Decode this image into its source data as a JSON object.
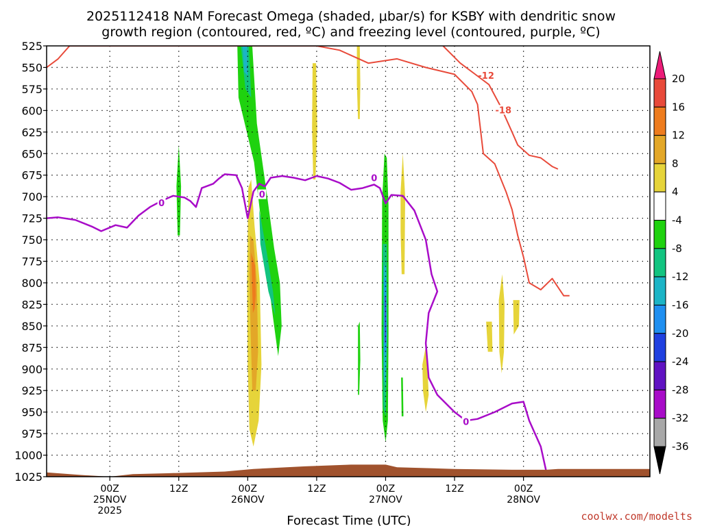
{
  "title": {
    "line1": "2025112418 NAM Forecast Omega (shaded, μbar/s) for KSBY with dendritic snow",
    "line2": "growth region (contoured, red, ºC) and freezing level (contoured, purple, ºC)"
  },
  "credit": "coolwx.com/modelts",
  "chart_data": {
    "type": "heatmap",
    "xlabel": "Forecast Time (UTC)",
    "ylabel": "",
    "y_axis": {
      "inverted": true,
      "ylim": [
        1025,
        525
      ],
      "ticks": [
        525,
        550,
        575,
        600,
        625,
        650,
        675,
        700,
        725,
        750,
        775,
        800,
        825,
        850,
        875,
        900,
        925,
        950,
        975,
        1000,
        1025
      ]
    },
    "x_axis": {
      "range_hours": [
        -11,
        94
      ],
      "ticks": [
        {
          "hour": 0,
          "lines": [
            "00Z",
            "25NOV",
            "2025"
          ]
        },
        {
          "hour": 12,
          "lines": [
            "12Z"
          ]
        },
        {
          "hour": 24,
          "lines": [
            "00Z",
            "26NOV"
          ]
        },
        {
          "hour": 36,
          "lines": [
            "12Z"
          ]
        },
        {
          "hour": 48,
          "lines": [
            "00Z",
            "27NOV"
          ]
        },
        {
          "hour": 60,
          "lines": [
            "12Z"
          ]
        },
        {
          "hour": 72,
          "lines": [
            "00Z",
            "28NOV"
          ]
        }
      ]
    },
    "grid": true,
    "colorbar": {
      "orientation": "vertical",
      "levels": [
        20,
        16,
        12,
        8,
        4,
        -4,
        -8,
        -12,
        -16,
        -20,
        -24,
        -28,
        -32,
        -36
      ],
      "colors": [
        "#ec1c78",
        "#e84a3a",
        "#ee7c1e",
        "#e3a728",
        "#e6d43a",
        "#ffffff",
        "#1fd20f",
        "#12c480",
        "#1cb4c6",
        "#1f8ff0",
        "#1f40e0",
        "#6012c2",
        "#a80cc8",
        "#a8a8a8",
        "#000000"
      ]
    },
    "omega_regions": [
      {
        "color": "#1fd20f",
        "points": [
          [
            11.6,
            688
          ],
          [
            12.0,
            640
          ],
          [
            12.4,
            688
          ],
          [
            12.2,
            745
          ],
          [
            11.8,
            745
          ]
        ]
      },
      {
        "color": "#1fd20f",
        "points": [
          [
            22.2,
            525
          ],
          [
            24.8,
            525
          ],
          [
            25.6,
            615
          ],
          [
            27.4,
            700
          ],
          [
            28.6,
            760
          ],
          [
            29.6,
            800
          ],
          [
            29.9,
            850
          ],
          [
            29.3,
            885
          ],
          [
            28.4,
            840
          ],
          [
            26.9,
            760
          ],
          [
            25.1,
            660
          ],
          [
            22.4,
            585
          ]
        ]
      },
      {
        "color": "#12c480",
        "points": [
          [
            22.8,
            525
          ],
          [
            24.2,
            525
          ],
          [
            24.6,
            585
          ],
          [
            23.6,
            575
          ]
        ]
      },
      {
        "color": "#1cb4c6",
        "points": [
          [
            23.1,
            525
          ],
          [
            23.9,
            525
          ],
          [
            24.0,
            560
          ],
          [
            23.4,
            555
          ]
        ]
      },
      {
        "color": "#12c480",
        "points": [
          [
            26.0,
            715
          ],
          [
            27.2,
            760
          ],
          [
            28.4,
            810
          ],
          [
            28.8,
            838
          ],
          [
            27.6,
            810
          ],
          [
            26.2,
            755
          ]
        ]
      },
      {
        "color": "#e6d43a",
        "points": [
          [
            24.1,
            690
          ],
          [
            24.6,
            680
          ],
          [
            25.2,
            735
          ],
          [
            26.1,
            800
          ],
          [
            26.4,
            895
          ],
          [
            25.9,
            960
          ],
          [
            25.0,
            990
          ],
          [
            24.3,
            970
          ],
          [
            24.0,
            895
          ],
          [
            23.9,
            800
          ]
        ]
      },
      {
        "color": "#e3a728",
        "points": [
          [
            24.4,
            745
          ],
          [
            25.0,
            750
          ],
          [
            25.6,
            800
          ],
          [
            25.8,
            880
          ],
          [
            25.4,
            925
          ],
          [
            24.8,
            925
          ],
          [
            24.5,
            855
          ],
          [
            24.3,
            790
          ]
        ]
      },
      {
        "color": "#ee7c1e",
        "points": [
          [
            24.6,
            765
          ],
          [
            25.3,
            780
          ],
          [
            25.4,
            815
          ],
          [
            25.2,
            830
          ],
          [
            24.9,
            835
          ]
        ]
      },
      {
        "color": "#e6d43a",
        "points": [
          [
            35.3,
            545
          ],
          [
            35.9,
            545
          ],
          [
            36.1,
            620
          ],
          [
            35.8,
            680
          ],
          [
            35.4,
            680
          ],
          [
            35.2,
            620
          ]
        ]
      },
      {
        "color": "#e6d43a",
        "points": [
          [
            43.0,
            525
          ],
          [
            43.5,
            525
          ],
          [
            43.6,
            570
          ],
          [
            43.5,
            610
          ],
          [
            43.2,
            610
          ],
          [
            43.0,
            570
          ]
        ]
      },
      {
        "color": "#1fd20f",
        "points": [
          [
            43.2,
            850
          ],
          [
            43.5,
            845
          ],
          [
            43.6,
            890
          ],
          [
            43.4,
            930
          ],
          [
            43.2,
            930
          ]
        ]
      },
      {
        "color": "#1fd20f",
        "points": [
          [
            47.4,
            705
          ],
          [
            47.8,
            650
          ],
          [
            48.2,
            655
          ],
          [
            48.5,
            710
          ],
          [
            48.5,
            860
          ],
          [
            48.4,
            960
          ],
          [
            48.0,
            985
          ],
          [
            47.5,
            960
          ],
          [
            47.3,
            860
          ]
        ]
      },
      {
        "color": "#12c480",
        "points": [
          [
            47.5,
            755
          ],
          [
            48.2,
            755
          ],
          [
            48.3,
            860
          ],
          [
            48.0,
            955
          ],
          [
            47.6,
            945
          ]
        ]
      },
      {
        "color": "#1cb4c6",
        "points": [
          [
            47.7,
            780
          ],
          [
            48.1,
            780
          ],
          [
            48.2,
            860
          ],
          [
            48.0,
            920
          ],
          [
            47.7,
            910
          ]
        ]
      },
      {
        "color": "#1f8ff0",
        "points": [
          [
            47.8,
            795
          ],
          [
            48.0,
            795
          ],
          [
            48.1,
            860
          ],
          [
            48.0,
            885
          ],
          [
            47.8,
            880
          ]
        ]
      },
      {
        "color": "#6012c2",
        "points": [
          [
            47.9,
            815
          ],
          [
            48.0,
            815
          ],
          [
            48.0,
            870
          ],
          [
            47.9,
            870
          ]
        ]
      },
      {
        "color": "#e6d43a",
        "points": [
          [
            50.6,
            695
          ],
          [
            51.0,
            650
          ],
          [
            51.4,
            700
          ],
          [
            51.3,
            790
          ],
          [
            50.8,
            790
          ],
          [
            50.6,
            740
          ]
        ]
      },
      {
        "color": "#1fd20f",
        "points": [
          [
            50.7,
            910
          ],
          [
            51.0,
            910
          ],
          [
            51.1,
            955
          ],
          [
            50.8,
            955
          ]
        ]
      },
      {
        "color": "#e6d43a",
        "points": [
          [
            54.4,
            895
          ],
          [
            55.1,
            870
          ],
          [
            55.5,
            930
          ],
          [
            55.0,
            950
          ],
          [
            54.5,
            925
          ]
        ]
      },
      {
        "color": "#e6d43a",
        "points": [
          [
            65.5,
            845
          ],
          [
            66.5,
            845
          ],
          [
            66.6,
            880
          ],
          [
            65.8,
            880
          ]
        ]
      },
      {
        "color": "#e6d43a",
        "points": [
          [
            67.7,
            820
          ],
          [
            68.3,
            790
          ],
          [
            68.7,
            825
          ],
          [
            68.6,
            880
          ],
          [
            68.2,
            905
          ],
          [
            67.8,
            880
          ]
        ]
      },
      {
        "color": "#e6d43a",
        "points": [
          [
            70.2,
            820
          ],
          [
            71.3,
            820
          ],
          [
            71.2,
            850
          ],
          [
            70.3,
            860
          ]
        ]
      }
    ],
    "contours": [
      {
        "color": "#e84a3a",
        "label": "-12",
        "label_at": [
          65.5,
          560
        ],
        "points": [
          [
            -11,
            550
          ],
          [
            -9,
            540
          ],
          [
            -7,
            525
          ],
          [
            36,
            525
          ],
          [
            40,
            530
          ],
          [
            45,
            545
          ],
          [
            50,
            540
          ],
          [
            55,
            550
          ],
          [
            60,
            558
          ],
          [
            63,
            578
          ],
          [
            64,
            593
          ],
          [
            65,
            650
          ],
          [
            67,
            662
          ],
          [
            69,
            695
          ],
          [
            70,
            715
          ],
          [
            71,
            745
          ],
          [
            72,
            770
          ],
          [
            73,
            800
          ],
          [
            75,
            808
          ],
          [
            77,
            795
          ],
          [
            79,
            815
          ],
          [
            80,
            815
          ]
        ]
      },
      {
        "color": "#e84a3a",
        "label": "",
        "label_at": null,
        "points": [
          [
            15,
            525
          ],
          [
            16.5,
            525
          ]
        ]
      },
      {
        "color": "#e84a3a",
        "label": "-18",
        "label_at": [
          68.5,
          600
        ],
        "points": [
          [
            58,
            525
          ],
          [
            61,
            545
          ],
          [
            64,
            560
          ],
          [
            66,
            570
          ],
          [
            68,
            595
          ],
          [
            70,
            625
          ],
          [
            71,
            640
          ],
          [
            73,
            652
          ],
          [
            75,
            655
          ],
          [
            77,
            665
          ],
          [
            78,
            668
          ]
        ]
      },
      {
        "color": "#a80cc8",
        "label": "0",
        "label_at": [
          9,
          708
        ],
        "points": [
          [
            -11,
            725
          ],
          [
            -9,
            724
          ],
          [
            -6,
            727
          ],
          [
            -3,
            735
          ],
          [
            -1.5,
            740
          ],
          [
            1,
            733
          ],
          [
            3,
            736
          ],
          [
            5,
            722
          ],
          [
            7,
            712
          ],
          [
            9,
            705
          ],
          [
            11,
            699
          ],
          [
            13,
            701
          ],
          [
            14,
            705
          ],
          [
            15,
            712
          ],
          [
            16,
            690
          ],
          [
            18,
            685
          ],
          [
            19,
            679
          ],
          [
            20,
            674
          ],
          [
            22,
            675
          ],
          [
            23,
            690
          ],
          [
            24,
            725
          ],
          [
            25,
            694
          ],
          [
            26,
            685
          ],
          [
            27,
            688
          ],
          [
            28,
            678
          ],
          [
            30,
            676
          ],
          [
            32,
            678
          ],
          [
            34,
            681
          ],
          [
            36,
            676
          ],
          [
            38,
            679
          ],
          [
            40,
            684
          ],
          [
            42,
            692
          ],
          [
            44,
            690
          ],
          [
            46,
            686
          ],
          [
            47,
            690
          ],
          [
            48,
            708
          ],
          [
            49,
            698
          ],
          [
            51,
            699
          ],
          [
            53,
            716
          ],
          [
            55,
            750
          ],
          [
            56,
            790
          ],
          [
            57,
            810
          ],
          [
            55.5,
            835
          ],
          [
            55,
            870
          ],
          [
            55.5,
            910
          ],
          [
            57,
            930
          ],
          [
            60,
            950
          ],
          [
            62,
            960
          ],
          [
            64,
            958
          ],
          [
            67,
            950
          ],
          [
            70,
            940
          ],
          [
            72,
            938
          ],
          [
            73,
            960
          ],
          [
            75,
            990
          ],
          [
            76,
            1020
          ]
        ]
      },
      {
        "color": "#a80cc8",
        "label": "0",
        "label_at": [
          26.5,
          698
        ],
        "points": []
      },
      {
        "color": "#a80cc8",
        "label": "0",
        "label_at": [
          46,
          679
        ],
        "points": []
      },
      {
        "color": "#a80cc8",
        "label": "0",
        "label_at": [
          62,
          962
        ],
        "points": []
      }
    ],
    "terrain": {
      "color": "#a0522d",
      "points": [
        [
          -11,
          1020
        ],
        [
          -5,
          1023
        ],
        [
          0,
          1025
        ],
        [
          4,
          1022
        ],
        [
          10,
          1021
        ],
        [
          20,
          1019
        ],
        [
          25,
          1016
        ],
        [
          34,
          1013
        ],
        [
          42,
          1011
        ],
        [
          48,
          1011
        ],
        [
          50,
          1014
        ],
        [
          60,
          1016
        ],
        [
          70,
          1017
        ],
        [
          76,
          1017
        ],
        [
          78,
          1016
        ]
      ]
    }
  }
}
